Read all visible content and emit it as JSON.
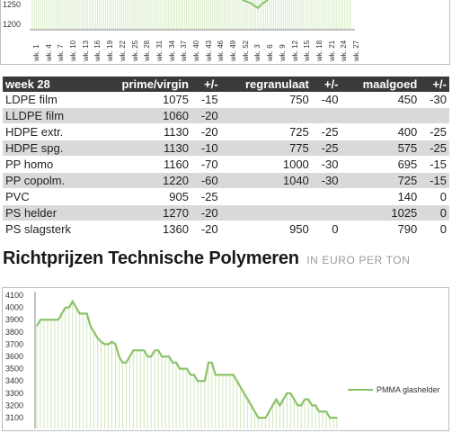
{
  "top_chart": {
    "y_ticks": [
      "1250",
      "1200"
    ],
    "x_ticks": [
      "wk. 1",
      "wk. 4",
      "wk. 7",
      "wk. 10",
      "wk. 13",
      "wk. 16",
      "wk. 19",
      "wk. 22",
      "wk. 25",
      "wk. 28",
      "wk. 31",
      "wk. 34",
      "wk. 37",
      "wk. 40",
      "wk. 43",
      "wk. 46",
      "wk. 49",
      "wk. 52",
      "wk. 3",
      "wk. 6",
      "wk. 9",
      "wk. 12",
      "wk. 15",
      "wk. 18",
      "wk. 21",
      "wk. 24",
      "wk. 27"
    ],
    "line_color": "#8cc265"
  },
  "table": {
    "headers": [
      "week 28",
      "prime/virgin",
      "+/-",
      "regranulaat",
      "+/-",
      "maalgoed",
      "+/-"
    ],
    "rows": [
      [
        "LDPE film",
        "1075",
        "-15",
        "750",
        "-40",
        "450",
        "-30"
      ],
      [
        "LLDPE film",
        "1060",
        "-20",
        "",
        "",
        "",
        ""
      ],
      [
        "HDPE extr.",
        "1130",
        "-20",
        "725",
        "-25",
        "400",
        "-25"
      ],
      [
        "HDPE spg.",
        "1130",
        "-10",
        "775",
        "-25",
        "575",
        "-25"
      ],
      [
        "PP homo",
        "1160",
        "-70",
        "1000",
        "-30",
        "695",
        "-15"
      ],
      [
        "PP copolm.",
        "1220",
        "-60",
        "1040",
        "-30",
        "725",
        "-15"
      ],
      [
        "PVC",
        "905",
        "-25",
        "",
        "",
        "140",
        "0"
      ],
      [
        "PS helder",
        "1270",
        "-20",
        "",
        "",
        "1025",
        "0"
      ],
      [
        "PS slagsterk",
        "1360",
        "-20",
        "950",
        "0",
        "790",
        "0"
      ]
    ]
  },
  "section": {
    "title": "Richtprijzen Technische Polymeren",
    "subtitle": "IN EURO PER TON"
  },
  "chart_data": {
    "type": "line",
    "title": "",
    "xlabel": "",
    "ylabel": "",
    "y_ticks": [
      4100,
      4000,
      3900,
      3800,
      3700,
      3600,
      3500,
      3400,
      3300,
      3200,
      3100
    ],
    "ylim": [
      3080,
      4140
    ],
    "grid": "vertical",
    "legend": "right",
    "series": [
      {
        "name": "PMMA glashelder",
        "color": "#8cc265",
        "values": [
          3850,
          3900,
          3900,
          3900,
          3900,
          3900,
          3900,
          3950,
          4000,
          4000,
          4050,
          4000,
          3950,
          3950,
          3950,
          3850,
          3800,
          3750,
          3720,
          3700,
          3700,
          3720,
          3700,
          3600,
          3550,
          3550,
          3600,
          3650,
          3650,
          3650,
          3650,
          3600,
          3600,
          3650,
          3650,
          3600,
          3600,
          3600,
          3550,
          3550,
          3500,
          3500,
          3500,
          3450,
          3450,
          3400,
          3400,
          3400,
          3550,
          3550,
          3450,
          3450,
          3450,
          3450,
          3450,
          3450,
          3400,
          3350,
          3300,
          3250,
          3200,
          3150,
          3100,
          3100,
          3100,
          3150,
          3200,
          3250,
          3200,
          3250,
          3300,
          3300,
          3250,
          3200,
          3200,
          3250,
          3250,
          3200,
          3200,
          3150,
          3150,
          3150,
          3100,
          3100,
          3100
        ]
      }
    ]
  }
}
